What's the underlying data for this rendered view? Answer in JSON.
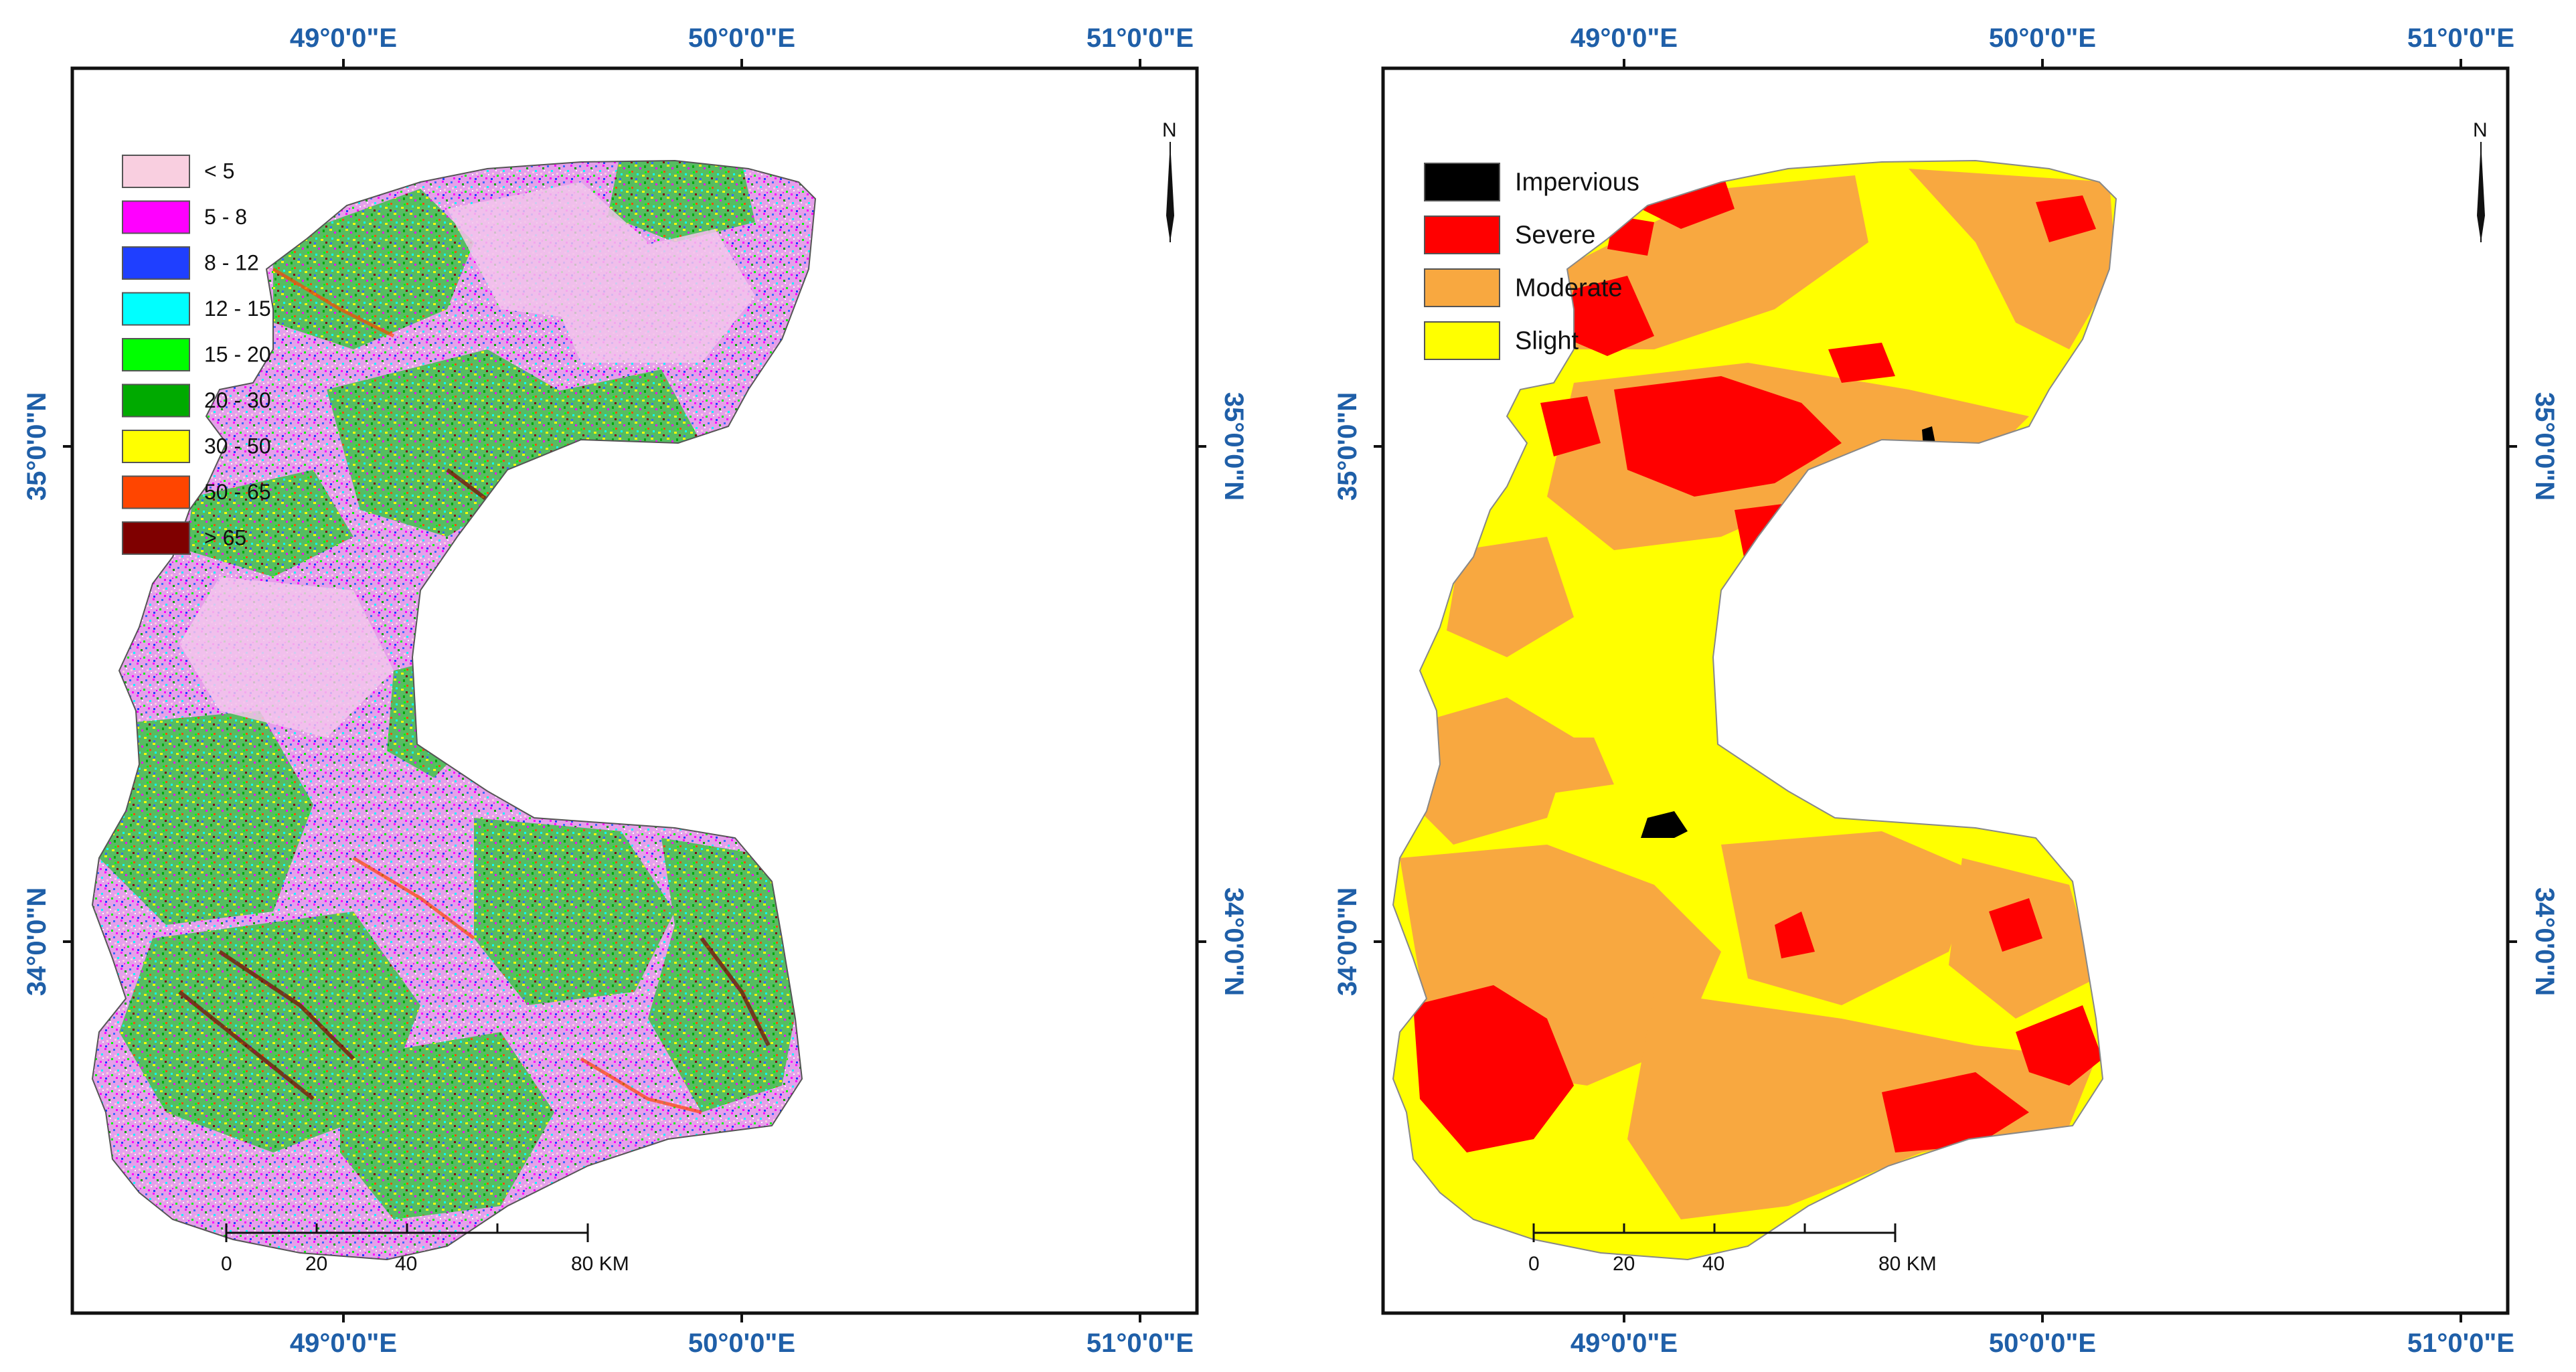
{
  "panels": [
    {
      "id": "slope",
      "lon_labels": [
        "49°0'0\"E",
        "50°0'0\"E",
        "51°0'0\"E"
      ],
      "lat_labels": [
        "35°0'0\"N",
        "34°0'0\"N"
      ],
      "legend": [
        {
          "label": "< 5",
          "color": "#f9cfe0"
        },
        {
          "label": "5 - 8",
          "color": "#ff00ff"
        },
        {
          "label": "8 - 12",
          "color": "#1f3fff"
        },
        {
          "label": "12 - 15",
          "color": "#00ffff"
        },
        {
          "label": "15 - 20",
          "color": "#00ff00"
        },
        {
          "label": "20 - 30",
          "color": "#00aa00"
        },
        {
          "label": "30 - 50",
          "color": "#ffff00"
        },
        {
          "label": "50 - 65",
          "color": "#ff4500"
        },
        {
          "label": "> 65",
          "color": "#7f0000"
        }
      ],
      "scale_labels": [
        "0",
        "20",
        "40",
        "80 KM"
      ],
      "north_label": "N"
    },
    {
      "id": "erosion",
      "lon_labels": [
        "49°0'0\"E",
        "50°0'0\"E",
        "51°0'0\"E"
      ],
      "lat_labels": [
        "35°0'0\"N",
        "34°0'0\"N"
      ],
      "legend": [
        {
          "label": "Impervious",
          "color": "#000000"
        },
        {
          "label": "Severe",
          "color": "#ff0000"
        },
        {
          "label": "Moderate",
          "color": "#f8a840"
        },
        {
          "label": "Slight",
          "color": "#ffff00"
        }
      ],
      "scale_labels": [
        "0",
        "20",
        "40",
        "80 KM"
      ],
      "north_label": "N"
    }
  ]
}
